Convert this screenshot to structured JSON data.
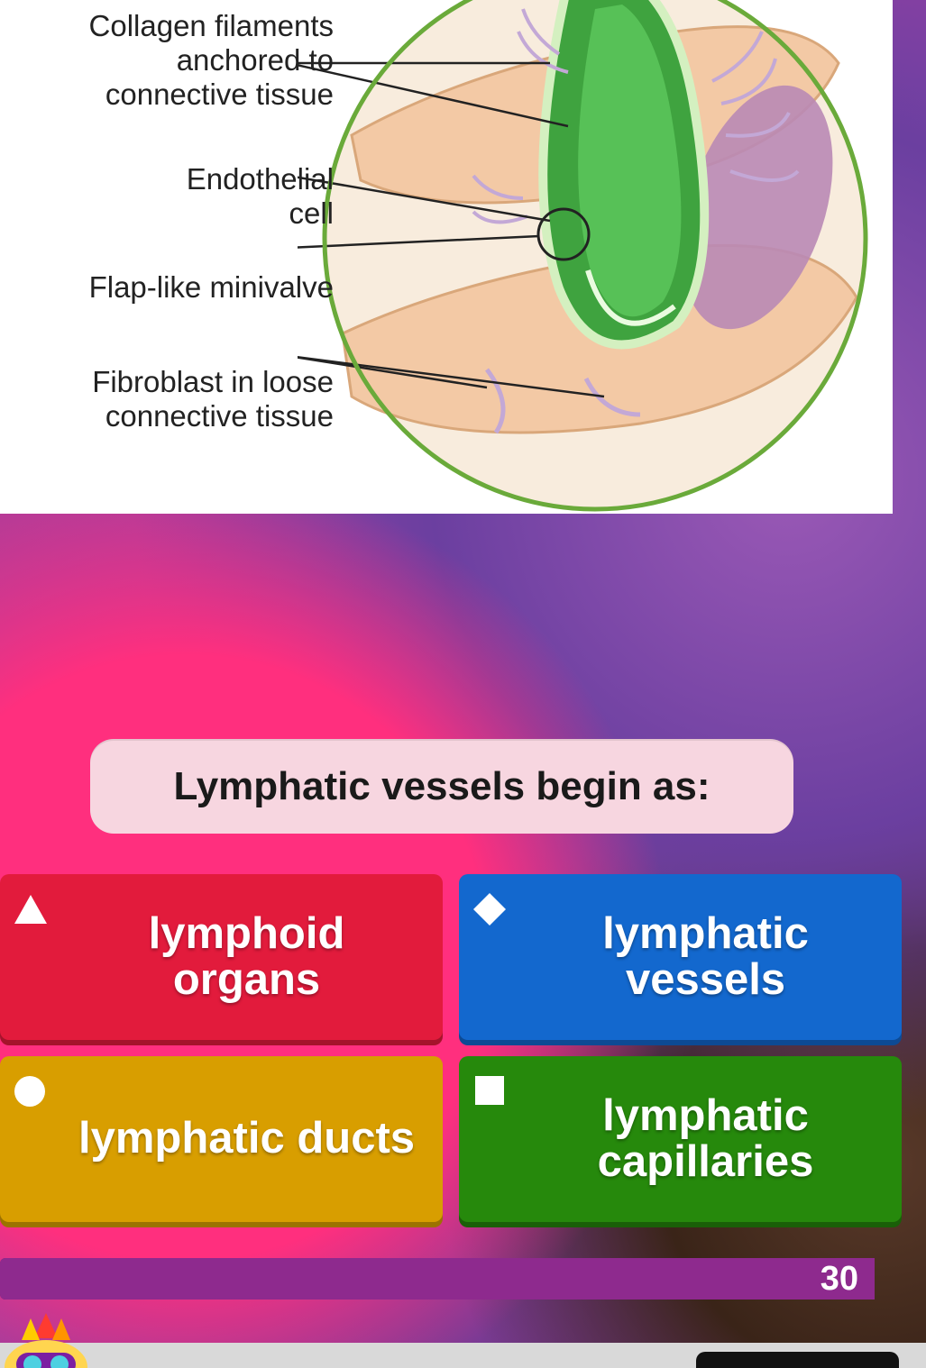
{
  "diagram": {
    "background_color": "#ffffff",
    "label_font_size": 33,
    "label_color": "#222222",
    "labels": [
      "Collagen filaments\nanchored to\nconnective tissue",
      "Endothelial\ncell",
      "Flap-like minivalve",
      "Fibroblast in loose\nconnective tissue"
    ],
    "circle_border_color": "#6aaa3a",
    "capillary_color": "#3fa33f",
    "capillary_edge_color": "#d4f0c0",
    "tissue_color": "#f3c9a5",
    "tissue_shadow": "#d9a77a",
    "fibroblast_color": "#b98ab5",
    "filament_color": "#c3a8d6"
  },
  "question": {
    "text": "Lymphatic vessels begin as:",
    "bg_color": "#f7d6e0",
    "text_color": "#1a1a1a",
    "font_size": 44
  },
  "answers": [
    {
      "label": "lymphoid organs",
      "shape": "triangle",
      "color": "#e21b3c",
      "shadow": "#a5132b"
    },
    {
      "label": "lymphatic vessels",
      "shape": "diamond",
      "color": "#1368ce",
      "shadow": "#0d4a94"
    },
    {
      "label": "lymphatic ducts",
      "shape": "circle",
      "color": "#d89e00",
      "shadow": "#9c7200"
    },
    {
      "label": "lymphatic capillaries",
      "shape": "square",
      "color": "#26890c",
      "shadow": "#1a5f08"
    }
  ],
  "answer_font_size": 49,
  "timer": {
    "seconds": "30",
    "bar_bg": "#6a1b6a",
    "bar_fill": "#8e2a8e",
    "fill_pct": 100,
    "text_color": "#ffffff"
  },
  "bottom": {
    "bar_color": "#d9d9d9",
    "button_color": "#111111"
  }
}
